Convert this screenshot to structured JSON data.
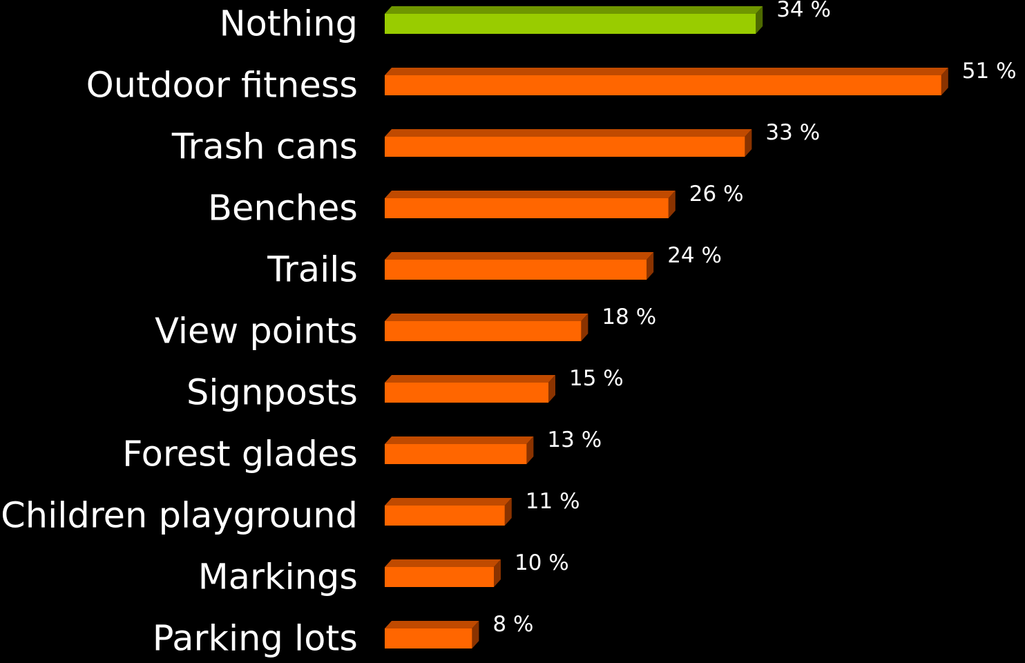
{
  "chart_data": {
    "type": "bar",
    "orientation": "horizontal",
    "style": "3d",
    "categories": [
      "Nothing",
      "Outdoor fitness",
      "Trash cans",
      "Benches",
      "Trails",
      "View points",
      "Signposts",
      "Forest glades",
      "Children playground",
      "Markings",
      "Parking lots"
    ],
    "values": [
      34,
      51,
      33,
      26,
      24,
      18,
      15,
      13,
      11,
      10,
      8
    ],
    "value_labels": [
      "34 %",
      "51 %",
      "33 %",
      "26 %",
      "24 %",
      "18 %",
      "15 %",
      "13 %",
      "11 %",
      "10 %",
      "8 %"
    ],
    "unit": "%",
    "highlight_index": 0,
    "title": "",
    "xlabel": "",
    "ylabel": "",
    "grid": false,
    "legend": "none",
    "xlim": [
      0,
      51
    ]
  },
  "colors": {
    "background": "#000000",
    "text": "#ffffff",
    "bar_front": "#ff6600",
    "bar_top": "#c04a00",
    "bar_side": "#8a3300",
    "highlight_front": "#99cc00",
    "highlight_top": "#6f9600",
    "highlight_side": "#4d6a00"
  }
}
